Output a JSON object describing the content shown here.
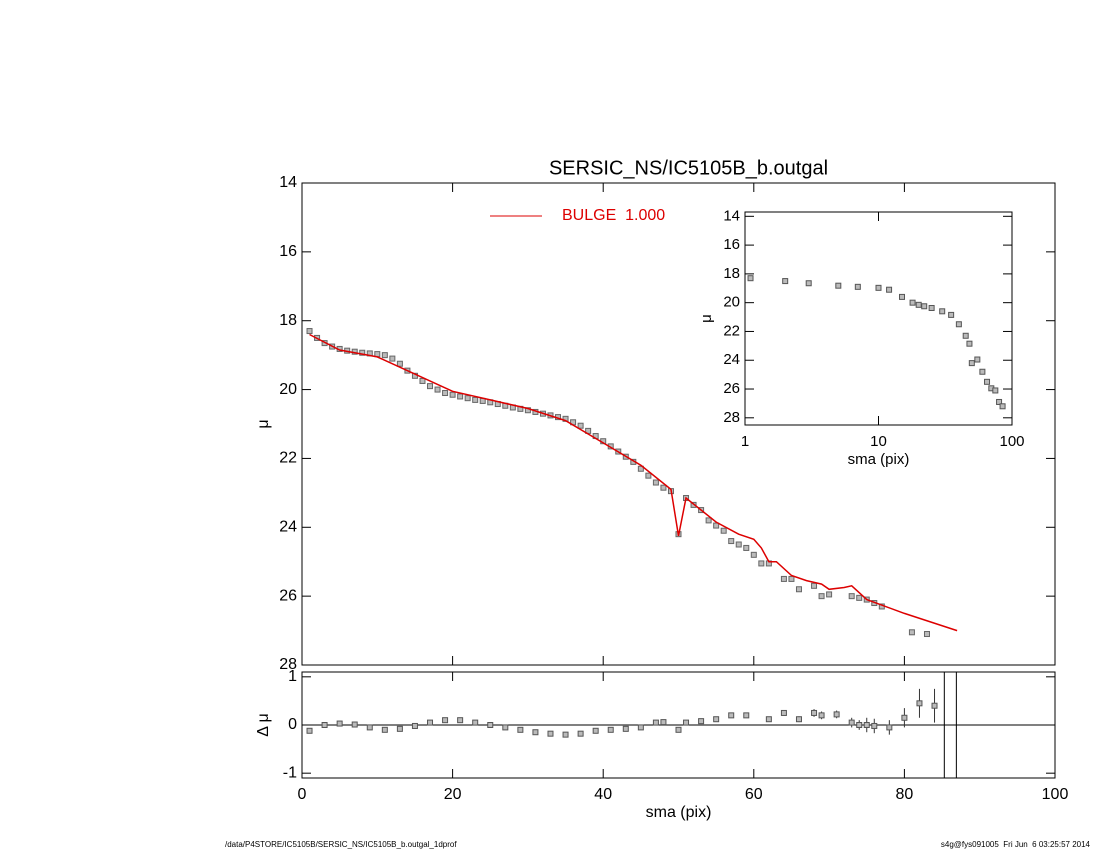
{
  "chart_data": [
    {
      "type": "scatter",
      "title": "SERSIC_NS/IC5105B_b.outgal",
      "ylabel": "μ",
      "xlim": [
        0,
        100
      ],
      "xticks": [
        0,
        20,
        40,
        60,
        80,
        100
      ],
      "show_xtick_labels": false,
      "ylim": [
        28,
        14
      ],
      "yticks": [
        14,
        16,
        18,
        20,
        22,
        24,
        26,
        28
      ],
      "legend": "top",
      "series": [
        {
          "color": "#666666",
          "mode": "markers",
          "x": [
            1,
            2,
            3,
            4,
            5,
            6,
            7,
            8,
            9,
            10,
            11,
            12,
            13,
            14,
            15,
            16,
            17,
            18,
            19,
            20,
            21,
            22,
            23,
            24,
            25,
            26,
            27,
            28,
            29,
            30,
            31,
            32,
            33,
            34,
            35,
            36,
            37,
            38,
            39,
            40,
            41,
            42,
            43,
            44,
            45,
            46,
            47,
            48,
            49,
            50,
            51,
            52,
            53,
            54,
            55,
            56,
            57,
            58,
            59,
            60,
            61,
            62,
            64,
            65,
            66,
            68,
            69,
            70,
            73,
            74,
            75,
            76,
            77,
            81,
            83
          ],
          "values": [
            18.3,
            18.5,
            18.65,
            18.75,
            18.82,
            18.87,
            18.9,
            18.93,
            18.95,
            18.97,
            19.0,
            19.1,
            19.25,
            19.45,
            19.6,
            19.75,
            19.9,
            20.0,
            20.1,
            20.15,
            20.2,
            20.25,
            20.3,
            20.33,
            20.37,
            20.42,
            20.47,
            20.52,
            20.56,
            20.6,
            20.65,
            20.7,
            20.75,
            20.8,
            20.85,
            20.95,
            21.05,
            21.2,
            21.35,
            21.5,
            21.65,
            21.8,
            21.95,
            22.1,
            22.3,
            22.5,
            22.7,
            22.85,
            22.95,
            24.2,
            23.15,
            23.35,
            23.5,
            23.8,
            23.95,
            24.1,
            24.4,
            24.5,
            24.6,
            24.8,
            25.05,
            25.05,
            25.5,
            25.5,
            25.8,
            25.7,
            26.0,
            25.95,
            26.0,
            26.05,
            26.1,
            26.2,
            26.3,
            27.05,
            27.1
          ]
        },
        {
          "name": "BULGE  1.000",
          "color": "#dd0000",
          "mode": "line",
          "x": [
            1,
            5,
            10,
            15,
            20,
            25,
            30,
            35,
            40,
            45,
            49,
            50,
            51,
            55,
            58,
            60,
            61,
            62,
            63,
            65,
            67,
            69,
            70,
            72,
            73,
            75,
            80,
            87
          ],
          "values": [
            18.4,
            18.85,
            19.05,
            19.55,
            20.05,
            20.3,
            20.55,
            20.9,
            21.55,
            22.2,
            22.9,
            24.25,
            23.15,
            23.85,
            24.2,
            24.35,
            24.6,
            25.0,
            25.0,
            25.4,
            25.55,
            25.65,
            25.8,
            25.75,
            25.7,
            26.1,
            26.5,
            27.0
          ]
        }
      ]
    },
    {
      "type": "errorbar",
      "xlabel": "sma (pix)",
      "ylabel": "Δ μ",
      "xlim": [
        0,
        100
      ],
      "xticks": [
        0,
        20,
        40,
        60,
        80,
        100
      ],
      "show_xtick_labels": true,
      "ylim": [
        -1.1,
        1.1
      ],
      "yticks": [
        -1,
        0,
        1
      ],
      "hline": 0,
      "vlines": [
        85.3,
        86.9
      ],
      "series": [
        {
          "color": "#555555",
          "mode": "markers",
          "x": [
            1,
            3,
            5,
            7,
            9,
            11,
            13,
            15,
            17,
            19,
            21,
            23,
            25,
            27,
            29,
            31,
            33,
            35,
            37,
            39,
            41,
            43,
            45,
            47,
            48,
            50,
            51,
            53,
            55,
            57,
            59,
            62,
            64,
            66,
            68,
            69,
            71,
            73,
            74,
            75,
            76,
            78,
            80,
            82,
            84
          ],
          "values": [
            -0.12,
            0.0,
            0.03,
            0.01,
            -0.05,
            -0.1,
            -0.08,
            -0.02,
            0.05,
            0.1,
            0.1,
            0.05,
            0.0,
            -0.05,
            -0.1,
            -0.15,
            -0.18,
            -0.2,
            -0.18,
            -0.12,
            -0.1,
            -0.08,
            -0.05,
            0.05,
            0.06,
            -0.1,
            0.05,
            0.08,
            0.12,
            0.2,
            0.2,
            0.12,
            0.25,
            0.12,
            0.25,
            0.2,
            0.22,
            0.05,
            0.0,
            0.0,
            -0.02,
            -0.05,
            0.15,
            0.45,
            0.4
          ],
          "errors": [
            0.02,
            0.02,
            0.02,
            0.02,
            0.02,
            0.02,
            0.02,
            0.02,
            0.02,
            0.02,
            0.02,
            0.02,
            0.02,
            0.02,
            0.02,
            0.02,
            0.02,
            0.02,
            0.02,
            0.02,
            0.02,
            0.02,
            0.02,
            0.02,
            0.02,
            0.05,
            0.02,
            0.02,
            0.02,
            0.03,
            0.03,
            0.04,
            0.05,
            0.06,
            0.08,
            0.08,
            0.08,
            0.1,
            0.1,
            0.15,
            0.15,
            0.15,
            0.2,
            0.3,
            0.35
          ]
        }
      ]
    },
    {
      "type": "scatter",
      "xlabel": "sma (pix)",
      "ylabel": "μ",
      "xlog": true,
      "xlim": [
        1,
        100
      ],
      "xticks": [
        1,
        10,
        100
      ],
      "show_xtick_labels": true,
      "ylim": [
        28.5,
        13.7
      ],
      "yticks": [
        14,
        16,
        18,
        20,
        22,
        24,
        26,
        28
      ],
      "series": [
        {
          "color": "#555555",
          "mode": "markers",
          "x": [
            1.1,
            2,
            3,
            5,
            7,
            10,
            12,
            15,
            18,
            20,
            22,
            25,
            30,
            35,
            40,
            45,
            48,
            50,
            55,
            60,
            65,
            70,
            75,
            80,
            85
          ],
          "values": [
            18.3,
            18.5,
            18.65,
            18.82,
            18.9,
            18.97,
            19.1,
            19.6,
            20.0,
            20.15,
            20.25,
            20.37,
            20.6,
            20.85,
            21.5,
            22.3,
            22.85,
            24.2,
            23.95,
            24.8,
            25.5,
            25.95,
            26.1,
            26.9,
            27.2
          ]
        }
      ]
    }
  ],
  "footer": {
    "left": "/data/P4STORE/IC5105B/SERSIC_NS/IC5105B_b.outgal_1dprof",
    "right": "s4g@fys091005  Fri Jun  6 03:25:57 2014"
  }
}
